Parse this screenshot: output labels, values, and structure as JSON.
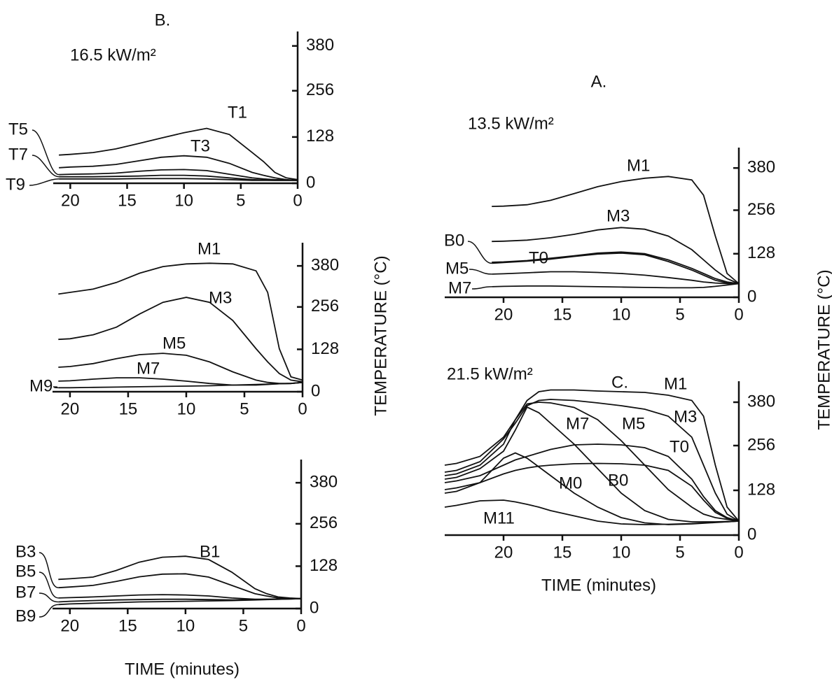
{
  "chart_data": [
    {
      "type": "line",
      "panel": "B.",
      "title": "16.5 kW/m²",
      "color": "#111111",
      "x": [
        21,
        20,
        18,
        16,
        14,
        12,
        10,
        8,
        6,
        4,
        3,
        2,
        1,
        0
      ],
      "xlim": [
        21.5,
        0
      ],
      "xticks": [
        20,
        15,
        10,
        5,
        0
      ],
      "ylim": [
        0,
        420
      ],
      "yticks": [
        0,
        128,
        256,
        380
      ],
      "series": [
        {
          "name": "T1",
          "values": [
            78,
            80,
            85,
            95,
            110,
            125,
            140,
            152,
            135,
            85,
            60,
            30,
            15,
            10
          ]
        },
        {
          "name": "T3",
          "values": [
            43,
            45,
            47,
            52,
            62,
            72,
            76,
            72,
            55,
            30,
            22,
            15,
            10,
            8
          ]
        },
        {
          "name": "T5",
          "values": [
            24,
            25,
            26,
            28,
            33,
            37,
            38,
            35,
            25,
            15,
            12,
            10,
            9,
            8
          ]
        },
        {
          "name": "T7",
          "values": [
            18,
            18,
            18,
            19,
            20,
            22,
            22,
            20,
            15,
            10,
            9,
            8,
            8,
            8
          ]
        },
        {
          "name": "T9",
          "values": [
            12,
            12,
            12,
            12,
            13,
            13,
            13,
            12,
            10,
            8,
            8,
            8,
            8,
            8
          ]
        }
      ]
    },
    {
      "type": "line",
      "ylabel": "TEMPERATURE (°C)",
      "color": "#111111",
      "x": [
        21,
        20,
        18,
        16,
        14,
        12,
        10,
        8,
        6,
        4,
        3,
        2,
        1,
        0
      ],
      "xlim": [
        21.5,
        0
      ],
      "xticks": [
        20,
        15,
        10,
        5,
        0
      ],
      "ylim": [
        0,
        450
      ],
      "yticks": [
        0,
        128,
        256,
        380
      ],
      "series": [
        {
          "name": "M1",
          "values": [
            295,
            300,
            310,
            330,
            358,
            378,
            386,
            388,
            386,
            365,
            300,
            130,
            45,
            35
          ]
        },
        {
          "name": "M3",
          "values": [
            158,
            160,
            172,
            195,
            235,
            270,
            285,
            270,
            215,
            130,
            90,
            55,
            35,
            30
          ]
        },
        {
          "name": "M5",
          "values": [
            74,
            76,
            85,
            100,
            112,
            116,
            110,
            90,
            60,
            35,
            28,
            25,
            25,
            28
          ]
        },
        {
          "name": "M7",
          "values": [
            32,
            33,
            38,
            42,
            42,
            38,
            32,
            25,
            20,
            20,
            22,
            24,
            25,
            28
          ]
        },
        {
          "name": "M9",
          "values": [
            12,
            12,
            13,
            14,
            15,
            16,
            17,
            18,
            20,
            22,
            23,
            24,
            25,
            28
          ]
        }
      ]
    },
    {
      "type": "line",
      "xlabel": "TIME (minutes)",
      "color": "#111111",
      "x": [
        21,
        20,
        18,
        16,
        14,
        12,
        10,
        8,
        6,
        4,
        3,
        2,
        1,
        0
      ],
      "xlim": [
        21.5,
        0
      ],
      "xticks": [
        20,
        15,
        10,
        5,
        0
      ],
      "ylim": [
        0,
        450
      ],
      "yticks": [
        0,
        128,
        256,
        380
      ],
      "series": [
        {
          "name": "B1",
          "values": [
            88,
            90,
            95,
            115,
            140,
            155,
            158,
            148,
            110,
            60,
            45,
            35,
            32,
            30
          ]
        },
        {
          "name": "B3",
          "values": [
            63,
            65,
            70,
            82,
            96,
            104,
            105,
            95,
            70,
            45,
            38,
            32,
            30,
            30
          ]
        },
        {
          "name": "B5",
          "values": [
            32,
            33,
            35,
            38,
            41,
            42,
            41,
            38,
            32,
            28,
            28,
            28,
            29,
            30
          ]
        },
        {
          "name": "B7",
          "values": [
            20,
            22,
            24,
            26,
            27,
            28,
            28,
            27,
            26,
            27,
            28,
            29,
            30,
            30
          ]
        },
        {
          "name": "B9",
          "values": [
            12,
            14,
            16,
            18,
            20,
            21,
            22,
            23,
            24,
            26,
            27,
            28,
            29,
            30
          ]
        }
      ]
    },
    {
      "type": "line",
      "panel": "A.",
      "title": "13.5 kW/m²",
      "ylabel": "TEMPERATURE (°C)",
      "color": "#111111",
      "x": [
        21,
        20,
        18,
        16,
        14,
        12,
        10,
        8,
        6,
        4,
        3,
        2,
        1,
        0
      ],
      "xlim": [
        25,
        0
      ],
      "xticks": [
        20,
        15,
        10,
        5,
        0
      ],
      "ylim": [
        0,
        440
      ],
      "yticks": [
        0,
        128,
        256,
        380
      ],
      "series": [
        {
          "name": "M1",
          "values": [
            267,
            268,
            272,
            285,
            305,
            325,
            340,
            350,
            355,
            345,
            300,
            180,
            70,
            40
          ]
        },
        {
          "name": "M3",
          "values": [
            164,
            165,
            168,
            175,
            185,
            198,
            205,
            200,
            180,
            140,
            110,
            80,
            55,
            40
          ]
        },
        {
          "name": "T0",
          "values": [
            103,
            104,
            108,
            115,
            122,
            130,
            133,
            128,
            110,
            85,
            70,
            55,
            45,
            40
          ]
        },
        {
          "name": "B0",
          "values": [
            100,
            102,
            106,
            112,
            120,
            127,
            130,
            125,
            105,
            80,
            65,
            50,
            42,
            40
          ]
        },
        {
          "name": "M5",
          "values": [
            68,
            69,
            72,
            75,
            75,
            73,
            70,
            65,
            58,
            50,
            45,
            42,
            40,
            40
          ]
        },
        {
          "name": "M7",
          "values": [
            31,
            32,
            33,
            33,
            32,
            31,
            30,
            29,
            28,
            28,
            29,
            32,
            36,
            40
          ]
        }
      ]
    },
    {
      "type": "line",
      "panel": "C.",
      "title": "21.5 kW/m²",
      "xlabel": "TIME (minutes)",
      "color": "#111111",
      "x": [
        25,
        24,
        22,
        20,
        19,
        18,
        17,
        16,
        14,
        12,
        10,
        8,
        6,
        4,
        3,
        2,
        1,
        0
      ],
      "xlim": [
        25,
        0
      ],
      "xticks": [
        20,
        15,
        10,
        5,
        0
      ],
      "ylim": [
        0,
        440
      ],
      "yticks": [
        0,
        128,
        256,
        380
      ],
      "series": [
        {
          "name": "M1",
          "values": [
            200,
            205,
            225,
            280,
            330,
            385,
            410,
            415,
            415,
            412,
            410,
            408,
            400,
            385,
            340,
            200,
            80,
            40
          ]
        },
        {
          "name": "M3",
          "values": [
            180,
            185,
            210,
            275,
            320,
            370,
            385,
            388,
            385,
            378,
            370,
            360,
            340,
            280,
            200,
            120,
            60,
            40
          ]
        },
        {
          "name": "M5",
          "values": [
            170,
            175,
            200,
            260,
            330,
            375,
            380,
            378,
            365,
            330,
            270,
            200,
            130,
            80,
            60,
            50,
            45,
            40
          ]
        },
        {
          "name": "M7",
          "values": [
            160,
            165,
            190,
            240,
            300,
            366,
            350,
            320,
            260,
            190,
            120,
            70,
            45,
            38,
            38,
            38,
            39,
            40
          ]
        },
        {
          "name": "T0",
          "values": [
            150,
            155,
            170,
            200,
            215,
            225,
            235,
            245,
            258,
            260,
            258,
            250,
            225,
            160,
            110,
            70,
            50,
            40
          ]
        },
        {
          "name": "B0",
          "values": [
            130,
            135,
            150,
            175,
            185,
            192,
            197,
            200,
            204,
            205,
            204,
            200,
            185,
            140,
            100,
            65,
            48,
            40
          ]
        },
        {
          "name": "M0",
          "values": [
            120,
            125,
            150,
            220,
            235,
            220,
            195,
            170,
            120,
            80,
            50,
            35,
            30,
            32,
            34,
            36,
            38,
            40
          ]
        },
        {
          "name": "M11",
          "values": [
            80,
            85,
            98,
            100,
            95,
            88,
            80,
            70,
            55,
            40,
            32,
            30,
            31,
            33,
            35,
            37,
            38,
            40
          ]
        }
      ]
    }
  ]
}
